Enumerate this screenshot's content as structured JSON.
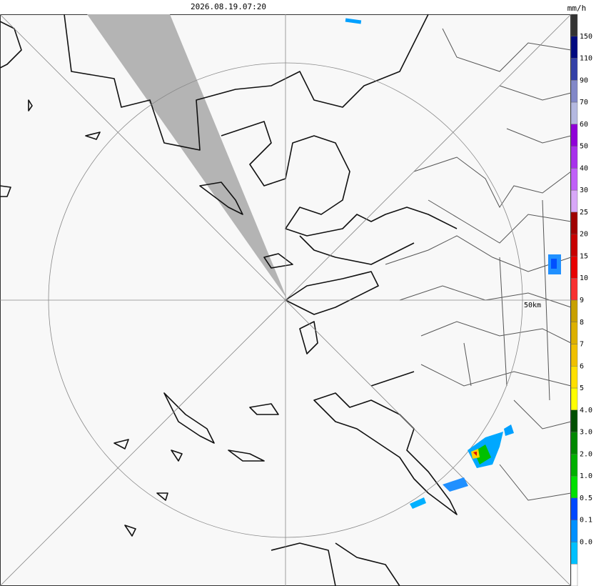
{
  "header": {
    "timestamp": "2026.08.19.07:20",
    "unit": "mm/h"
  },
  "map": {
    "range_label": "50km"
  },
  "legend": {
    "labels": [
      "150",
      "110",
      "90",
      "70",
      "60",
      "50",
      "40",
      "30",
      "25",
      "20",
      "15",
      "10",
      "9",
      "8",
      "7",
      "6",
      "5",
      "4.0",
      "3.0",
      "2.0",
      "1.0",
      "0.5",
      "0.1",
      "0.0"
    ],
    "colors": [
      "#333333",
      "#000a80",
      "#3340a8",
      "#8288c8",
      "#b4b8e0",
      "#9000d8",
      "#a830ec",
      "#c060f8",
      "#d8a8f8",
      "#a00000",
      "#c80000",
      "#e80000",
      "#f83030",
      "#c8a000",
      "#dcb000",
      "#f0c000",
      "#ffe000",
      "#ffff00",
      "#005000",
      "#008800",
      "#00b000",
      "#00e000",
      "#0048ff",
      "#0090ff",
      "#00c0ff",
      "#ffffff"
    ]
  }
}
